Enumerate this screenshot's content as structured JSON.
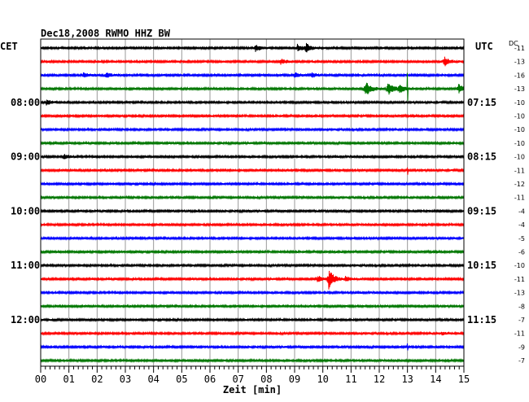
{
  "chart_data": {
    "type": "line",
    "title": "Dec18,2008   RWMO HHZ BW",
    "xlabel": "Zeit [min]",
    "left_axis_label": "CET",
    "right_axis_label": "UTC",
    "dc_header": "DC",
    "xlim": [
      0,
      15
    ],
    "x_ticks": [
      "00",
      "01",
      "02",
      "03",
      "04",
      "05",
      "06",
      "07",
      "08",
      "09",
      "10",
      "11",
      "12",
      "13",
      "14",
      "15"
    ],
    "trace_colors": [
      "#000000",
      "#ff0000",
      "#0000ff",
      "#007700"
    ],
    "hour_rows": [
      {
        "trace": 4,
        "cet": "08:00",
        "utc": "07:15"
      },
      {
        "trace": 8,
        "cet": "09:00",
        "utc": "08:15"
      },
      {
        "trace": 12,
        "cet": "10:00",
        "utc": "09:15"
      },
      {
        "trace": 16,
        "cet": "11:00",
        "utc": "10:15"
      },
      {
        "trace": 20,
        "cet": "12:00",
        "utc": "11:15"
      }
    ],
    "dc_offsets": [
      "-11",
      "-13",
      "-16",
      "-13",
      "-10",
      "-10",
      "-10",
      "-10",
      "-10",
      "-11",
      "-12",
      "-11",
      "-4",
      "-4",
      "-5",
      "-6",
      "-10",
      "-11",
      "-13",
      "-8",
      "-7",
      "-11",
      "-9",
      "-7"
    ],
    "events": [
      {
        "trace": 0,
        "x": 7.6,
        "amp": 4
      },
      {
        "trace": 0,
        "x": 9.1,
        "amp": 4
      },
      {
        "trace": 0,
        "x": 9.4,
        "amp": 5
      },
      {
        "trace": 1,
        "x": 8.5,
        "amp": 3
      },
      {
        "trace": 1,
        "x": 14.3,
        "amp": 6
      },
      {
        "trace": 2,
        "x": 1.5,
        "amp": 3
      },
      {
        "trace": 2,
        "x": 2.3,
        "amp": 3
      },
      {
        "trace": 2,
        "x": 9.0,
        "amp": 3
      },
      {
        "trace": 2,
        "x": 9.6,
        "amp": 3
      },
      {
        "trace": 3,
        "x": 11.5,
        "amp": 10
      },
      {
        "trace": 3,
        "x": 12.3,
        "amp": 8
      },
      {
        "trace": 3,
        "x": 12.7,
        "amp": 5
      },
      {
        "trace": 3,
        "x": 14.8,
        "amp": 6
      },
      {
        "trace": 4,
        "x": 0.2,
        "amp": 3
      },
      {
        "trace": 8,
        "x": 0.8,
        "amp": 3
      },
      {
        "trace": 17,
        "x": 10.2,
        "amp": 12
      },
      {
        "trace": 17,
        "x": 9.8,
        "amp": 4
      },
      {
        "trace": 17,
        "x": 10.8,
        "amp": 3
      },
      {
        "trace": 21,
        "x": 14.2,
        "amp": 2
      }
    ],
    "spikes": [
      {
        "trace": 3,
        "x": 13.0,
        "amp": 18
      },
      {
        "trace": 9,
        "x": 13.0,
        "amp": 5
      },
      {
        "trace": 22,
        "x": 13.0,
        "amp": 4
      }
    ]
  }
}
